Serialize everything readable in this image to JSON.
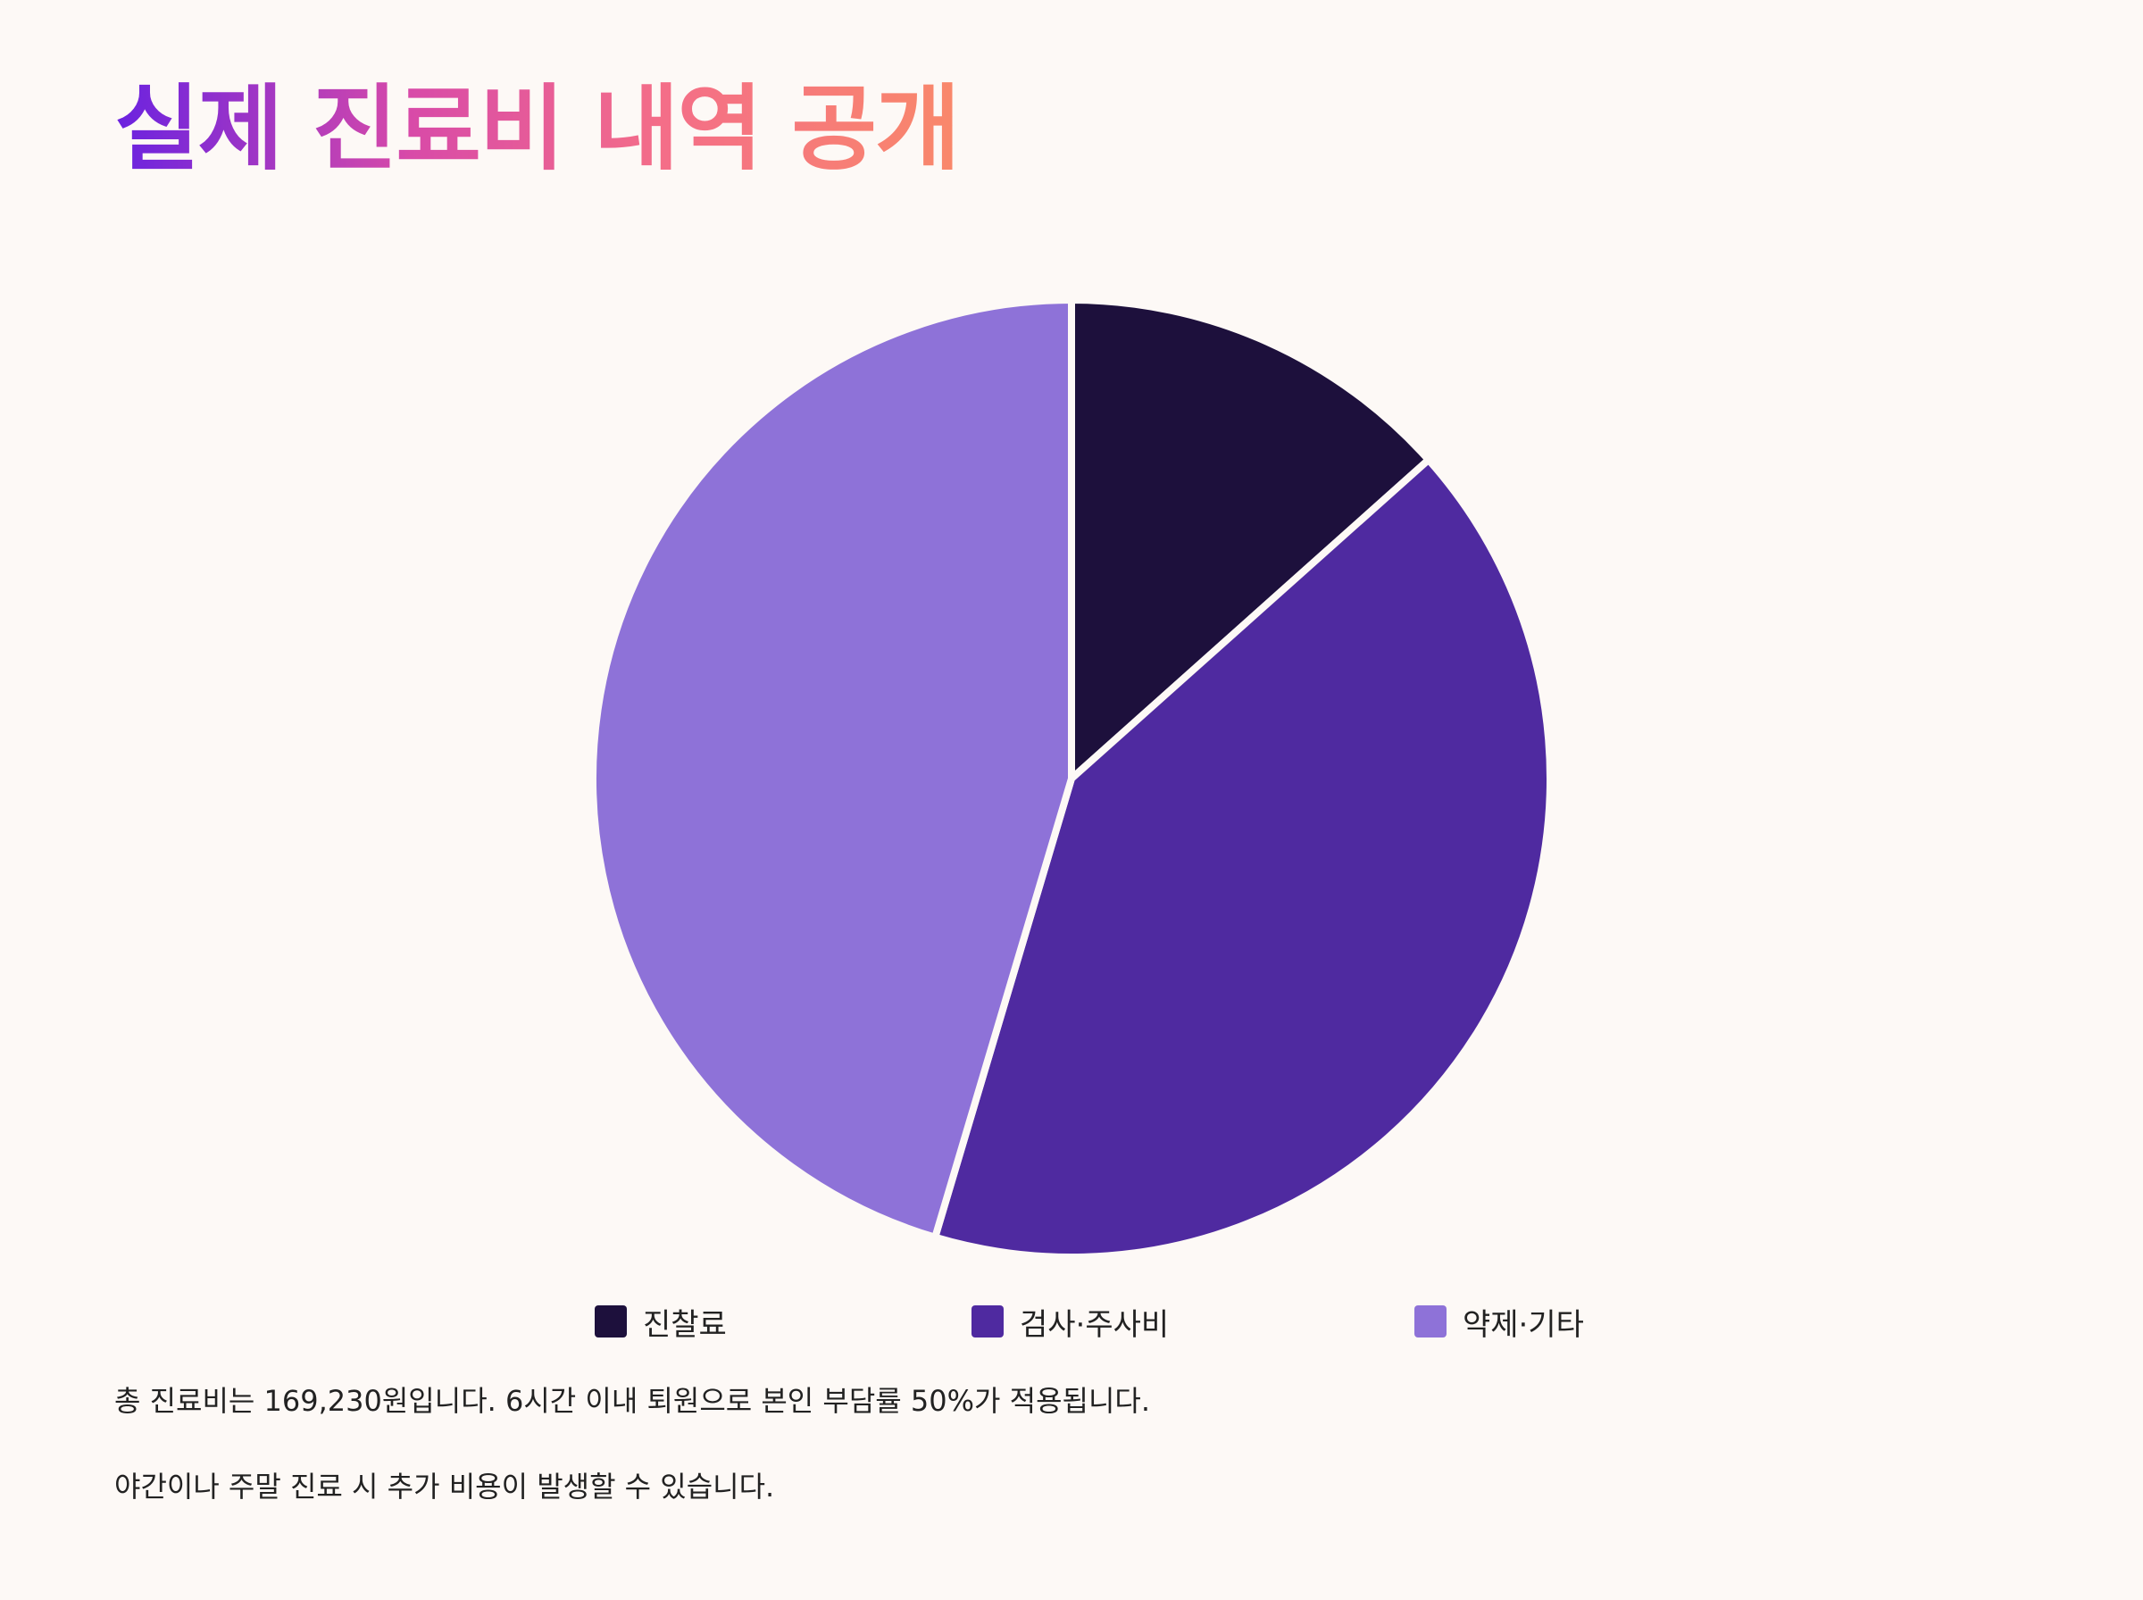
{
  "title": "실제 진료비 내역 공개",
  "chart_data": {
    "type": "pie",
    "categories": [
      "진찰료",
      "검사·주사비",
      "약제·기타"
    ],
    "values": [
      13.4,
      41.2,
      45.4
    ],
    "colors": [
      "#1d103c",
      "#4f2aa0",
      "#8e72d8"
    ],
    "start_angle_deg": 0,
    "direction": "clockwise",
    "legend_position": "bottom"
  },
  "notes": [
    "총 진료비는 169,230원입니다. 6시간 이내 퇴원으로 본인 부담률 50%가 적용됩니다.",
    "야간이나 주말 진료 시 추가 비용이 발생할 수 있습니다."
  ]
}
